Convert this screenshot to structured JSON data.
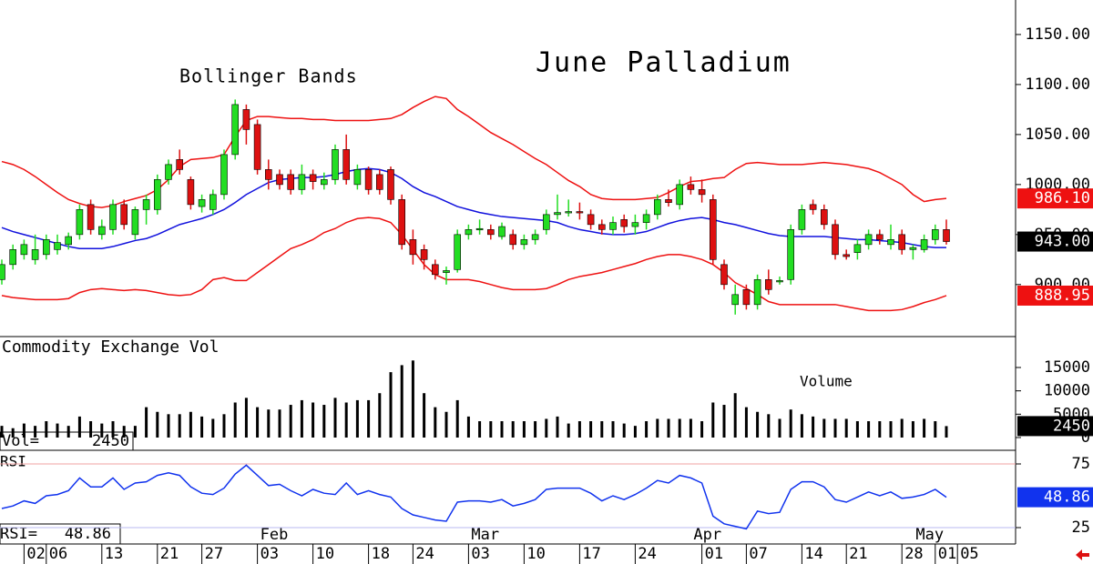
{
  "chart_data": [
    {
      "type": "candlestick",
      "title": "June Palladium",
      "annotation": "Bollinger Bands",
      "categories": [
        null,
        null,
        "02",
        null,
        "06",
        null,
        null,
        null,
        null,
        "13",
        null,
        null,
        null,
        null,
        "21",
        null,
        null,
        null,
        "27",
        null,
        null,
        null,
        null,
        "03",
        null,
        null,
        null,
        null,
        "10",
        null,
        null,
        null,
        null,
        "18",
        null,
        null,
        null,
        "24",
        null,
        null,
        null,
        null,
        "03",
        null,
        null,
        null,
        null,
        "10",
        null,
        null,
        null,
        null,
        "17",
        null,
        null,
        null,
        null,
        "24",
        null,
        null,
        null,
        null,
        null,
        "01",
        null,
        null,
        null,
        "07",
        null,
        null,
        null,
        null,
        "14",
        null,
        null,
        null,
        "21",
        null,
        null,
        null,
        null,
        "28",
        null,
        null,
        "01",
        null,
        "05"
      ],
      "months": [
        null,
        null,
        null,
        null,
        null,
        null,
        null,
        null,
        null,
        null,
        null,
        null,
        null,
        null,
        null,
        null,
        null,
        null,
        null,
        null,
        null,
        null,
        null,
        "Feb",
        null,
        null,
        null,
        null,
        null,
        null,
        null,
        null,
        null,
        null,
        null,
        null,
        null,
        null,
        null,
        null,
        null,
        null,
        "Mar",
        null,
        null,
        null,
        null,
        null,
        null,
        null,
        null,
        null,
        null,
        null,
        null,
        null,
        null,
        null,
        null,
        null,
        null,
        null,
        "Apr",
        null,
        null,
        null,
        null,
        null,
        null,
        null,
        null,
        null,
        null,
        null,
        null,
        null,
        null,
        null,
        null,
        null,
        null,
        null,
        "May",
        null,
        null
      ],
      "open": [
        905,
        920,
        930,
        925,
        930,
        935,
        940,
        950,
        980,
        950,
        955,
        980,
        950,
        975,
        975,
        1005,
        1025,
        1005,
        978,
        975,
        990,
        1030,
        1075,
        1060,
        1015,
        1010,
        1010,
        995,
        1010,
        1000,
        1005,
        1035,
        1000,
        1015,
        1010,
        1015,
        985,
        945,
        935,
        920,
        912,
        915,
        950,
        955,
        955,
        948,
        950,
        940,
        945,
        955,
        970,
        972,
        973,
        970,
        960,
        955,
        965,
        958,
        962,
        970,
        985,
        980,
        1000,
        995,
        985,
        920,
        880,
        895,
        880,
        905,
        903,
        905,
        955,
        980,
        975,
        960,
        930,
        932,
        940,
        950,
        940,
        950,
        935,
        935,
        945,
        955,
        null
      ],
      "high": [
        925,
        940,
        945,
        950,
        950,
        950,
        952,
        980,
        985,
        965,
        985,
        985,
        978,
        990,
        1010,
        1025,
        1035,
        1008,
        990,
        995,
        1035,
        1085,
        1080,
        1065,
        1025,
        1015,
        1015,
        1020,
        1015,
        1012,
        1040,
        1050,
        1020,
        1018,
        1015,
        1018,
        990,
        955,
        940,
        925,
        918,
        955,
        960,
        965,
        960,
        962,
        955,
        950,
        955,
        975,
        990,
        985,
        982,
        975,
        965,
        968,
        970,
        970,
        975,
        990,
        995,
        1005,
        1008,
        1005,
        990,
        925,
        900,
        900,
        910,
        915,
        908,
        960,
        980,
        985,
        980,
        965,
        935,
        945,
        955,
        955,
        960,
        955,
        940,
        950,
        960,
        965,
        null
      ],
      "low": [
        900,
        915,
        925,
        920,
        925,
        930,
        935,
        945,
        950,
        945,
        950,
        955,
        945,
        960,
        970,
        1000,
        1010,
        975,
        972,
        970,
        985,
        1025,
        1040,
        1010,
        995,
        995,
        990,
        990,
        995,
        995,
        1000,
        1000,
        995,
        990,
        990,
        980,
        935,
        920,
        915,
        905,
        900,
        912,
        945,
        950,
        945,
        945,
        935,
        935,
        940,
        950,
        965,
        968,
        965,
        955,
        950,
        950,
        952,
        950,
        955,
        965,
        978,
        975,
        990,
        982,
        920,
        895,
        870,
        875,
        875,
        890,
        900,
        900,
        950,
        970,
        955,
        925,
        925,
        925,
        935,
        940,
        935,
        930,
        925,
        932,
        940,
        940,
        null
      ],
      "close": [
        920,
        935,
        940,
        935,
        945,
        942,
        948,
        975,
        955,
        958,
        980,
        960,
        975,
        985,
        1005,
        1020,
        1015,
        980,
        985,
        990,
        1030,
        1080,
        1055,
        1015,
        1005,
        1000,
        995,
        1010,
        1003,
        1005,
        1035,
        1005,
        1015,
        995,
        995,
        985,
        940,
        930,
        925,
        910,
        914,
        950,
        955,
        956,
        950,
        958,
        940,
        945,
        950,
        970,
        972,
        973,
        972,
        960,
        955,
        962,
        958,
        962,
        970,
        985,
        982,
        1000,
        995,
        990,
        925,
        900,
        890,
        880,
        905,
        895,
        904,
        955,
        975,
        975,
        960,
        930,
        928,
        940,
        950,
        945,
        945,
        935,
        937,
        945,
        955,
        943,
        null
      ],
      "last_label": "943.00",
      "up_color": "#22dd22",
      "down_color": "#dd1111",
      "overlays": [
        {
          "color": "#ee1111",
          "last_label": "986.10",
          "values": [
            1023,
            1020,
            1015,
            1008,
            1000,
            992,
            985,
            981,
            978,
            977,
            979,
            983,
            986,
            989,
            995,
            1005,
            1018,
            1025,
            1026,
            1027,
            1030,
            1048,
            1064,
            1068,
            1068,
            1067,
            1066,
            1066,
            1065,
            1065,
            1064,
            1064,
            1064,
            1064,
            1065,
            1066,
            1070,
            1077,
            1083,
            1088,
            1086,
            1075,
            1068,
            1060,
            1052,
            1046,
            1040,
            1033,
            1026,
            1020,
            1012,
            1004,
            998,
            990,
            986,
            985,
            985,
            985,
            986,
            987,
            992,
            998,
            1003,
            1004,
            1006,
            1007,
            1015,
            1021,
            1022,
            1021,
            1020,
            1020,
            1020,
            1021,
            1022,
            1021,
            1020,
            1018,
            1016,
            1012,
            1006,
            1000,
            990,
            983,
            985,
            986.1,
            null
          ]
        },
        {
          "color": "#1111dd",
          "values": [
            957,
            953,
            950,
            947,
            944,
            941,
            938,
            936,
            936,
            936,
            938,
            941,
            944,
            946,
            950,
            955,
            960,
            963,
            966,
            970,
            975,
            982,
            990,
            996,
            1002,
            1005,
            1006,
            1007,
            1007,
            1008,
            1010,
            1013,
            1015,
            1016,
            1015,
            1012,
            1006,
            998,
            992,
            988,
            983,
            978,
            975,
            972,
            970,
            968,
            967,
            966,
            965,
            964,
            962,
            958,
            955,
            953,
            951,
            950,
            950,
            951,
            953,
            957,
            961,
            964,
            966,
            967,
            965,
            962,
            960,
            957,
            954,
            951,
            949,
            948,
            948,
            948,
            948,
            947,
            946,
            945,
            945,
            944,
            943,
            942,
            940,
            938,
            937,
            937,
            null
          ]
        },
        {
          "color": "#ee1111",
          "last_label": "888.95",
          "values": [
            889,
            887,
            886,
            885,
            885,
            885,
            886,
            892,
            895,
            896,
            895,
            894,
            895,
            894,
            892,
            890,
            889,
            890,
            895,
            905,
            907,
            904,
            904,
            912,
            920,
            928,
            936,
            940,
            945,
            952,
            956,
            962,
            966,
            967,
            966,
            962,
            950,
            935,
            920,
            910,
            905,
            905,
            905,
            903,
            900,
            897,
            895,
            895,
            895,
            896,
            900,
            905,
            908,
            910,
            912,
            915,
            918,
            921,
            925,
            928,
            930,
            930,
            928,
            925,
            920,
            912,
            902,
            896,
            890,
            883,
            880,
            880,
            880,
            880,
            880,
            880,
            878,
            876,
            874,
            874,
            874,
            875,
            878,
            882,
            885,
            888.95,
            null
          ]
        }
      ],
      "ylim": [
        848,
        1184.5
      ],
      "yticks": [
        {
          "value": 1150,
          "label": "1150.00"
        },
        {
          "value": 1100,
          "label": "1100.00"
        },
        {
          "value": 1050,
          "label": "1050.00"
        },
        {
          "value": 1000,
          "label": "1000.00"
        },
        {
          "value": 950,
          "label": "950.00"
        },
        {
          "value": 900,
          "label": "900.00"
        }
      ]
    },
    {
      "type": "bar",
      "title": "Commodity Exchange Vol",
      "annotation": "Volume",
      "readout": "Vol=",
      "color": "#000000",
      "values": [
        2500,
        2000,
        3000,
        2500,
        3500,
        3000,
        2500,
        4500,
        3500,
        3000,
        3500,
        2500,
        2500,
        6500,
        5500,
        5000,
        5000,
        5500,
        4500,
        4000,
        5000,
        7500,
        8500,
        6500,
        6000,
        6000,
        7000,
        8000,
        7500,
        7000,
        8500,
        7500,
        8000,
        8000,
        9500,
        14000,
        15500,
        16500,
        9500,
        6500,
        5500,
        8000,
        4500,
        3500,
        3500,
        3500,
        3500,
        3500,
        3500,
        4000,
        4500,
        3000,
        3500,
        3500,
        3500,
        3500,
        3000,
        2500,
        3500,
        4000,
        4000,
        4000,
        4000,
        3500,
        7500,
        7000,
        9500,
        6500,
        5500,
        5000,
        4000,
        6000,
        5000,
        4500,
        4000,
        4000,
        4000,
        3500,
        3500,
        3500,
        3500,
        4000,
        3500,
        4000,
        3500,
        2450,
        null
      ],
      "ylim": [
        -2730,
        21620
      ],
      "yticks": [
        0,
        5000,
        10000,
        15000
      ]
    },
    {
      "type": "line",
      "title": "RSI",
      "readout": "RSI=",
      "color": "#1133ee",
      "values": [
        40,
        42,
        46,
        44,
        50,
        51,
        54,
        64,
        57,
        57,
        64,
        55,
        60,
        61,
        66,
        68,
        66,
        57,
        52,
        51,
        56,
        67,
        74,
        66,
        58,
        59,
        54,
        50,
        55,
        52,
        51,
        60,
        51,
        54,
        51,
        49,
        40,
        35,
        33,
        31,
        30,
        45,
        46,
        46,
        45,
        47,
        42,
        44,
        47,
        55,
        56,
        56,
        56,
        52,
        46,
        50,
        47,
        51,
        56,
        62,
        60,
        66,
        64,
        60,
        34,
        28,
        26,
        24,
        38,
        36,
        37,
        55,
        61,
        61,
        57,
        47,
        45,
        49,
        53,
        50,
        53,
        48,
        49,
        51,
        55,
        48.86,
        null
      ],
      "ylim": [
        12.14,
        85.71
      ],
      "yticks": [
        25,
        75
      ]
    }
  ]
}
